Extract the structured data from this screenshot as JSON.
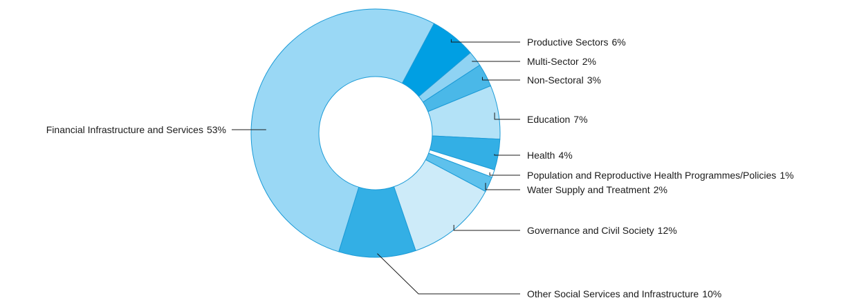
{
  "chart_data": {
    "type": "pie",
    "donut": true,
    "title": "",
    "legend": "none",
    "grid": false,
    "unit": "%",
    "slices": [
      {
        "name": "Productive Sectors",
        "value": 6,
        "label": "6%",
        "color": "#009fe3"
      },
      {
        "name": "Multi-Sector",
        "value": 2,
        "label": "2%",
        "color": "#8fd3f3"
      },
      {
        "name": "Non-Sectoral",
        "value": 3,
        "label": "3%",
        "color": "#4ab8e8"
      },
      {
        "name": "Education",
        "value": 7,
        "label": "7%",
        "color": "#b3e2f7"
      },
      {
        "name": "Health",
        "value": 4,
        "label": "4%",
        "color": "#33afe5"
      },
      {
        "name": "Population and Reproductive Health Programmes/Policies",
        "value": 1,
        "label": "1%",
        "color": "#ffffff"
      },
      {
        "name": "Water Supply and Treatment",
        "value": 2,
        "label": "2%",
        "color": "#5ec1ec"
      },
      {
        "name": "Governance and Civil Society",
        "value": 12,
        "label": "12%",
        "color": "#cdebf9"
      },
      {
        "name": "Other Social Services and Infrastructure",
        "value": 10,
        "label": "10%",
        "color": "#33afe5"
      },
      {
        "name": "Financial Infrastructure and Services",
        "value": 53,
        "label": "53%",
        "color": "#9ad8f5"
      }
    ]
  }
}
